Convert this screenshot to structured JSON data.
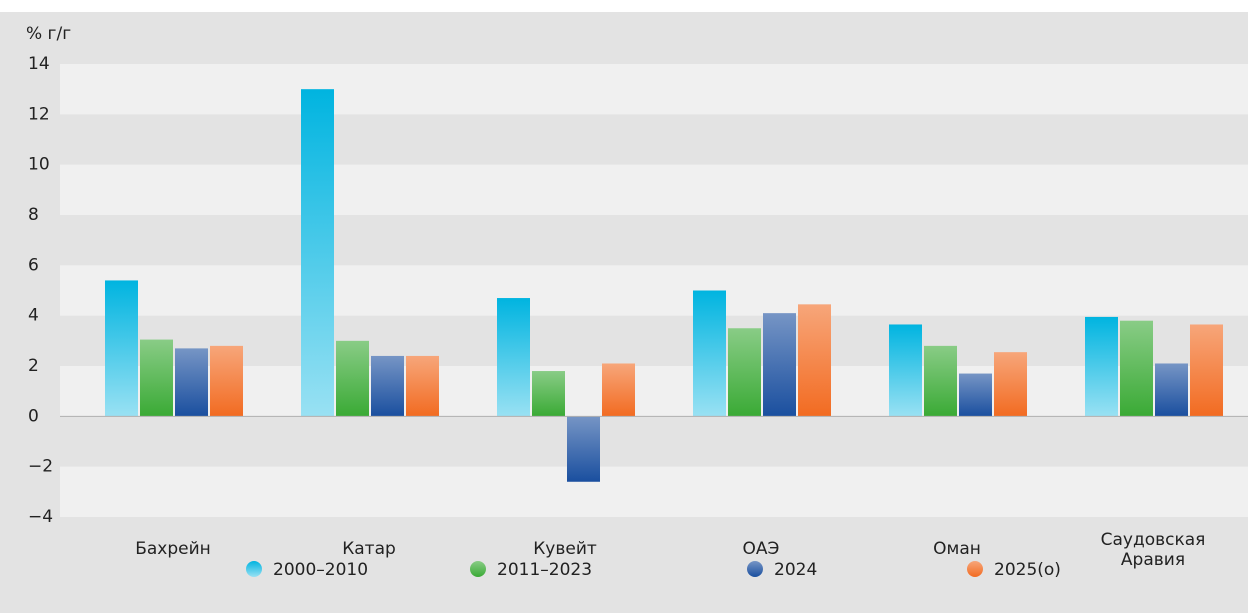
{
  "chart_data": {
    "type": "bar",
    "y_label": "% г/г",
    "categories": [
      "Бахрейн",
      "Катар",
      "Кувейт",
      "ОАЭ",
      "Оман",
      "Саудовская Аравия"
    ],
    "series": [
      {
        "name": "2000–2010",
        "color": "#00b4e0",
        "values": [
          5.4,
          13.0,
          4.7,
          5.0,
          3.65,
          3.95
        ]
      },
      {
        "name": "2011–2023",
        "color": "#3aaa35",
        "values": [
          3.05,
          3.0,
          1.8,
          3.5,
          2.8,
          3.8
        ]
      },
      {
        "name": "2024",
        "color": "#1a4f9f",
        "values": [
          2.7,
          2.4,
          -2.6,
          4.1,
          1.7,
          2.1
        ]
      },
      {
        "name": "2025(о)",
        "color": "#f26b21",
        "values": [
          2.8,
          2.4,
          2.1,
          4.45,
          2.55,
          3.65
        ]
      }
    ],
    "ylim": [
      -4,
      14
    ],
    "yticks": [
      {
        "value": -4,
        "label": "−4"
      },
      {
        "value": -2,
        "label": "−2"
      },
      0,
      2,
      4,
      6,
      8,
      10,
      12,
      14
    ],
    "grid": true
  }
}
